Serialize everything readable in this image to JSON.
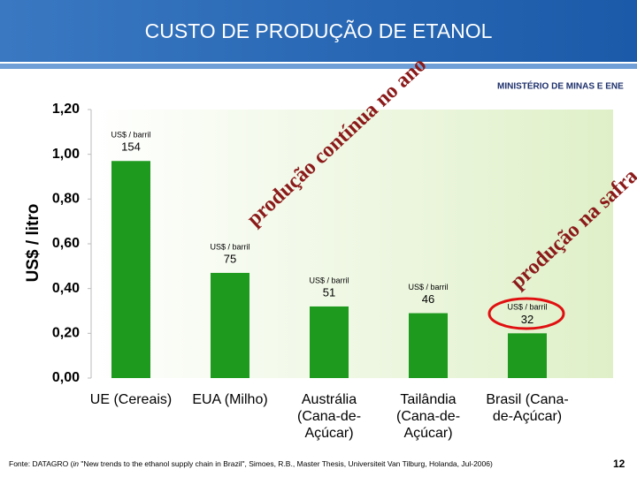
{
  "header": {
    "title": "CUSTO DE PRODUÇÃO DE ETANOL",
    "ministry": "MINISTÉRIO DE MINAS E ENE"
  },
  "chart_data": {
    "type": "bar",
    "y_label": "US$ / litro",
    "categories": [
      "UE (Cereais)",
      "EUA (Milho)",
      "Austrália (Cana-de-Açúcar)",
      "Tailândia (Cana-de-Açúcar)",
      "Brasil (Cana-de-Açúcar)"
    ],
    "values": [
      0.97,
      0.47,
      0.32,
      0.29,
      0.2
    ],
    "color": "#1e9a1e",
    "barrel_labels": [
      {
        "unit": "US$ / barril",
        "value": 154
      },
      {
        "unit": "US$ / barril",
        "value": 75
      },
      {
        "unit": "US$ / barril",
        "value": 51
      },
      {
        "unit": "US$ / barril",
        "value": 46
      },
      {
        "unit": "US$ / barril",
        "value": 32
      }
    ],
    "ylim": [
      0,
      1.2
    ],
    "yticks": [
      {
        "value": 0,
        "label": "0,00"
      },
      {
        "value": 0.2,
        "label": "0,20"
      },
      {
        "value": 0.4,
        "label": "0,40"
      },
      {
        "value": 0.6,
        "label": "0,60"
      },
      {
        "value": 0.8,
        "label": "0,80"
      },
      {
        "value": 1.0,
        "label": "1,00"
      },
      {
        "value": 1.2,
        "label": "1,20"
      }
    ],
    "annotations": [
      "produção contínua no ano",
      "produção na safra"
    ]
  },
  "footer": {
    "source_prefix": "Fonte: DATAGRO (",
    "source_italic": "in",
    "source_rest": " \"New trends to the ethanol supply chain in Brazil\", Simoes, R.B., Master Thesis, Universiteit Van Tilburg, Holanda, Jul-2006)",
    "page": "12"
  }
}
